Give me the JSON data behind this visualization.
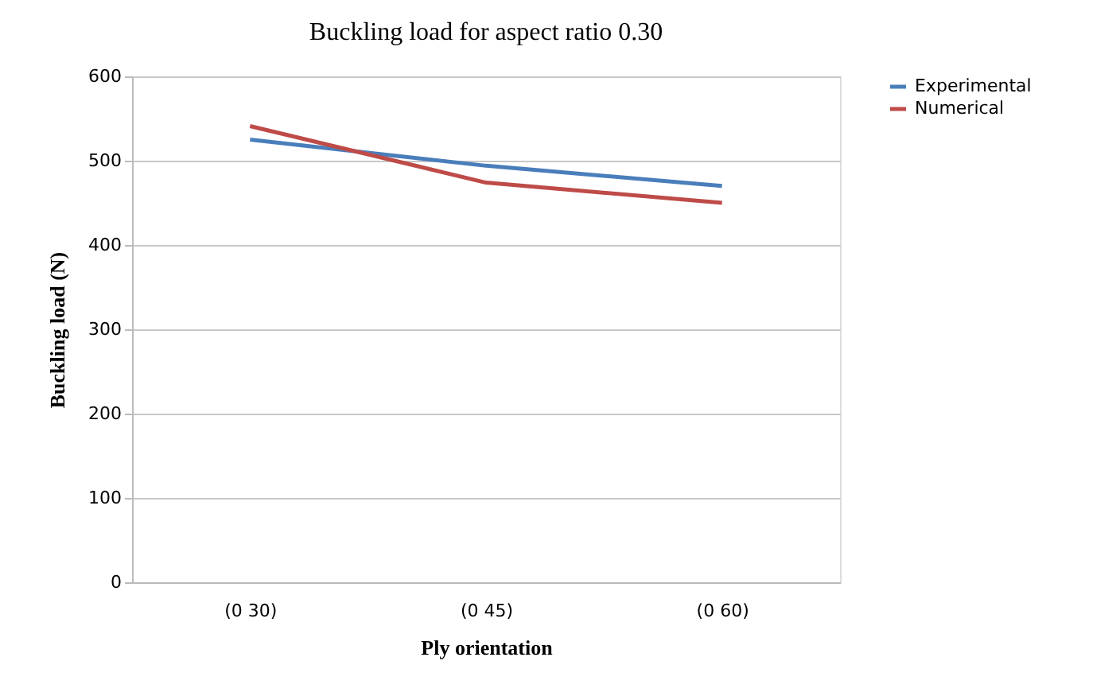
{
  "chart_data": {
    "type": "line",
    "title": "Buckling load for aspect ratio 0.30",
    "xlabel": "Ply orientation",
    "ylabel": "Buckling load (N)",
    "categories": [
      "(0 30)",
      "(0 45)",
      "(0 60)"
    ],
    "series": [
      {
        "name": "Experimental",
        "color": "#4a7ebb",
        "values": [
          525,
          494,
          470
        ]
      },
      {
        "name": "Numerical",
        "color": "#be4b48",
        "values": [
          541,
          474,
          450
        ]
      }
    ],
    "ylim": [
      0,
      600
    ],
    "yticks": [
      0,
      100,
      200,
      300,
      400,
      500,
      600
    ],
    "grid": "y",
    "legend": "right",
    "marker": "none",
    "line_style": "solid"
  }
}
